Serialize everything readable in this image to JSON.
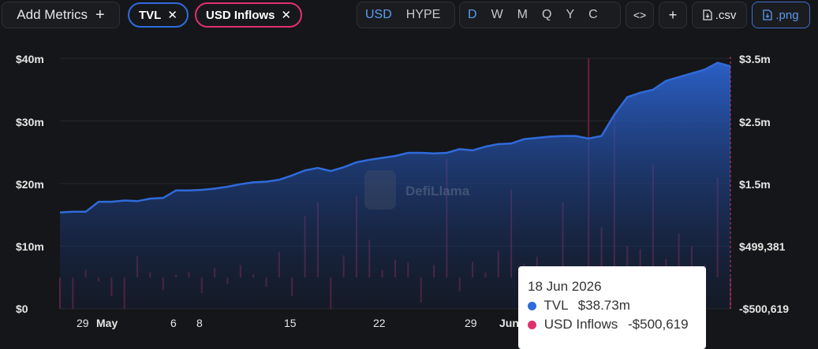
{
  "toolbar": {
    "add_metrics_label": "Add Metrics",
    "add_icon": "+",
    "metric_pills": [
      {
        "label": "TVL",
        "color": "#2f6bdc"
      },
      {
        "label": "USD Inflows",
        "color": "#e0306c"
      }
    ],
    "currency_options": [
      "USD",
      "HYPE"
    ],
    "currency_selected": "USD",
    "period_options": [
      "D",
      "W",
      "M",
      "Q",
      "Y",
      "C"
    ],
    "period_selected": "D",
    "embed_icon": "<>",
    "plus_label": "+",
    "csv_label": ".csv",
    "png_label": ".png"
  },
  "watermark": "DefiLlama",
  "chart_data": {
    "type": "area",
    "title": "",
    "x_ticks": [
      "29",
      "May",
      "6",
      "8",
      "15",
      "22",
      "29",
      "Jun"
    ],
    "y_left_ticks": [
      "$0",
      "$10m",
      "$20m",
      "$30m",
      "$40m"
    ],
    "y_right_ticks": [
      "-$500,619",
      "$499,381",
      "$1.5m",
      "$2.5m",
      "$3.5m"
    ],
    "y_left_range": [
      0,
      40000000
    ],
    "series": [
      {
        "name": "TVL",
        "color": "#2f6bdc",
        "values_m": [
          15.4,
          15.5,
          15.5,
          17.1,
          17.1,
          17.3,
          17.2,
          17.6,
          17.7,
          18.9,
          18.9,
          19.0,
          19.2,
          19.5,
          19.9,
          20.2,
          20.3,
          20.6,
          21.3,
          22.1,
          22.5,
          22.0,
          22.6,
          23.4,
          23.8,
          24.1,
          24.4,
          24.9,
          24.9,
          24.8,
          24.9,
          25.5,
          25.3,
          25.9,
          26.3,
          26.4,
          27.1,
          27.3,
          27.5,
          27.6,
          27.6,
          27.2,
          27.6,
          31.0,
          33.8,
          34.5,
          35.0,
          36.4,
          37.0,
          37.6,
          38.2,
          39.3,
          38.73
        ]
      },
      {
        "name": "USD Inflows",
        "color": "#e0306c",
        "values": [
          -500619,
          -500619,
          120000,
          -60000,
          -300000,
          -500619,
          340000,
          80000,
          -200000,
          40000,
          90000,
          -250000,
          150000,
          -100000,
          200000,
          50000,
          -150000,
          410000,
          -300000,
          980000,
          1200000,
          -500000,
          350000,
          1300000,
          600000,
          120000,
          280000,
          240000,
          -400000,
          200000,
          1900000,
          -220000,
          250000,
          80000,
          420000,
          1400000,
          220000,
          330000,
          130000,
          1200000,
          80000,
          3500000,
          800000,
          2600000,
          500000,
          450000,
          1800000,
          290000,
          700000,
          500000,
          200000,
          1600000,
          -500619
        ]
      }
    ]
  },
  "tooltip": {
    "date": "18 Jun 2026",
    "tvl_label": "TVL",
    "tvl_value": "$38.73m",
    "inflows_label": "USD Inflows",
    "inflows_value": "-$500,619"
  }
}
